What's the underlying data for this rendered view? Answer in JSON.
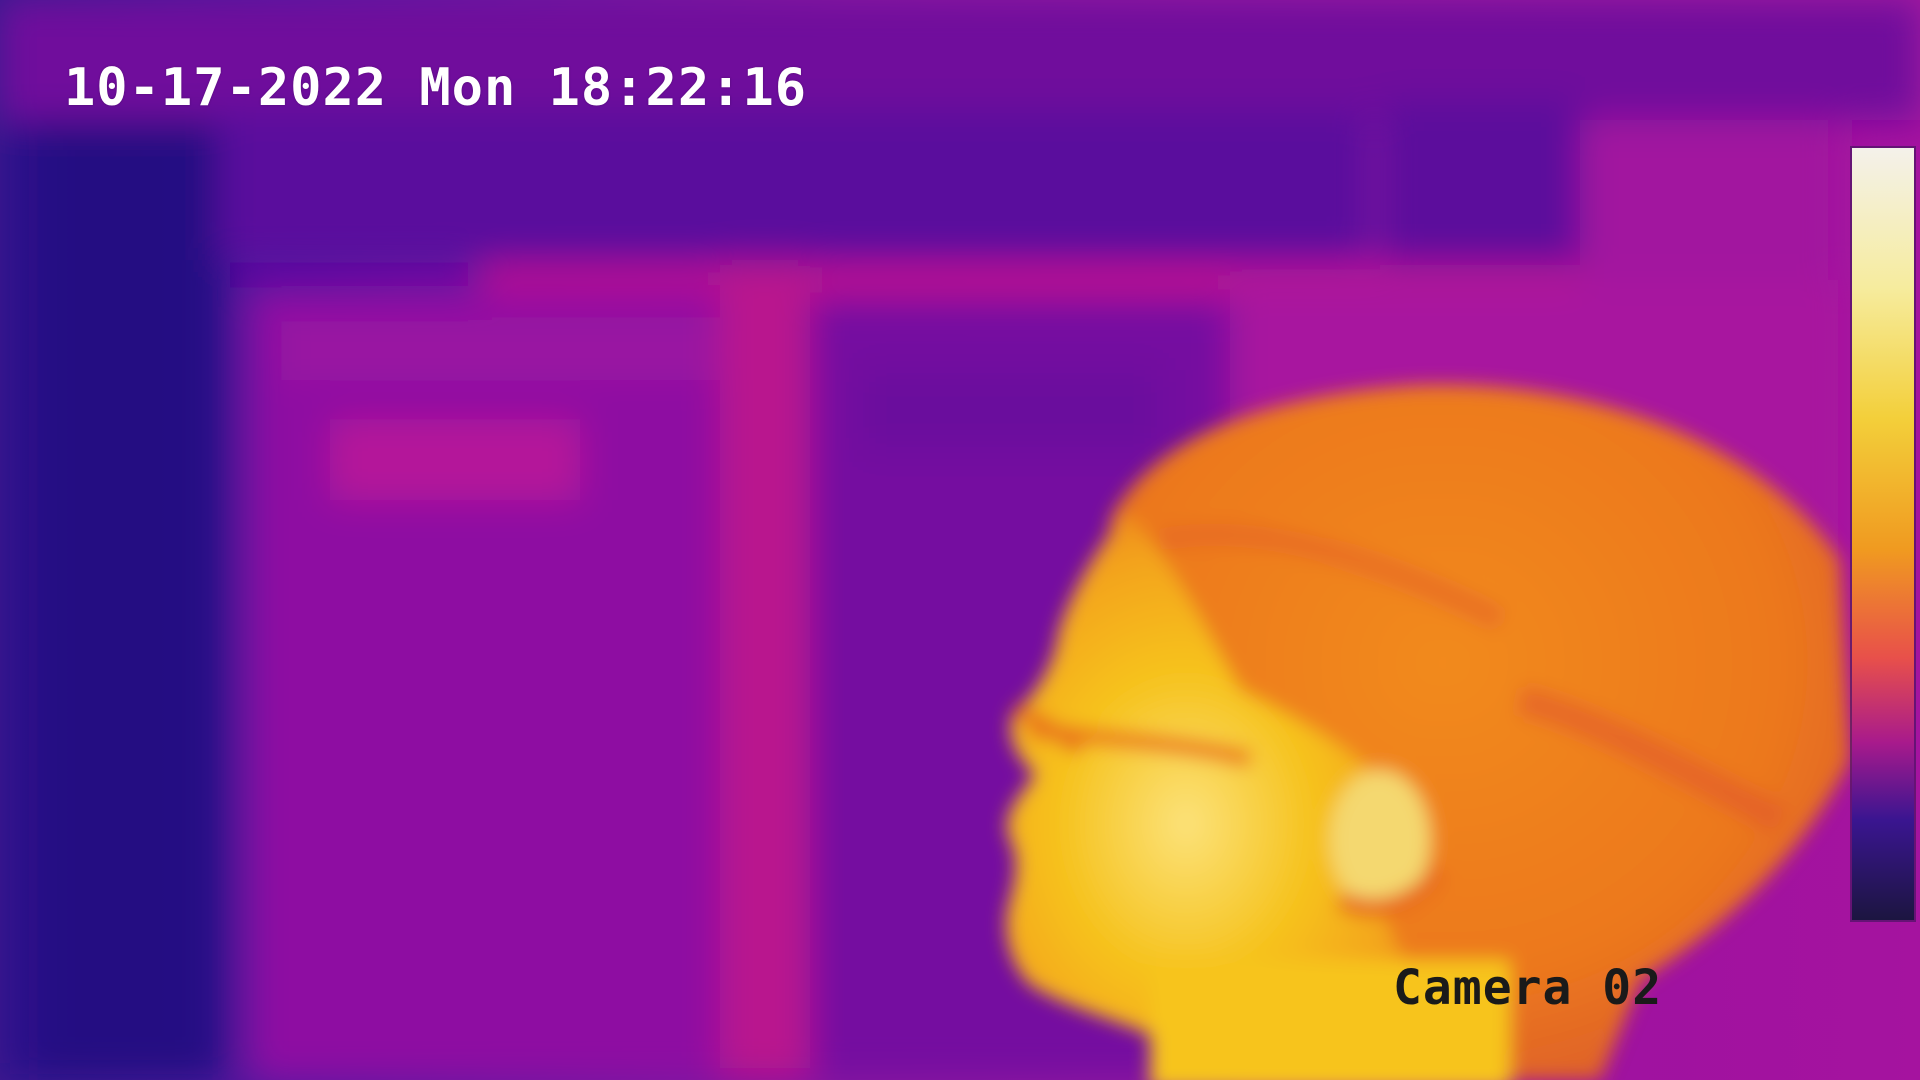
{
  "overlay": {
    "timestamp": "10-17-2022 Mon 18:22:16",
    "camera_label": "Camera 02"
  },
  "palette": {
    "cold": "#2a0f85",
    "cool": "#6a0f9f",
    "mid": "#b01394",
    "warm": "#f07a1a",
    "hot": "#f6c21c",
    "hottest": "#fdf3c8"
  }
}
